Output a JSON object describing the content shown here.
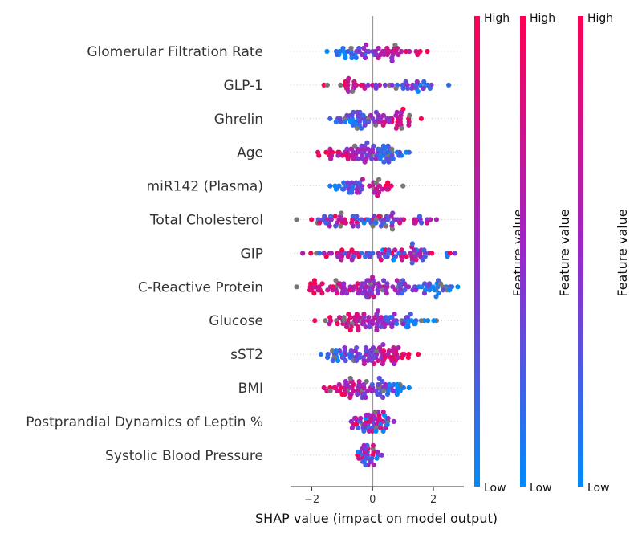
{
  "chart_data": {
    "type": "scatter",
    "subtype": "shap-beeswarm",
    "xlabel": "SHAP value (impact on model output)",
    "xlim": [
      -2.7,
      3.0
    ],
    "xticks": [
      {
        "value": -2,
        "label": "−2"
      },
      {
        "value": 0,
        "label": "0"
      },
      {
        "value": 2,
        "label": "2"
      }
    ],
    "features": [
      {
        "name": "Glomerular Filtration Rate",
        "range": [
          -1.5,
          1.8
        ],
        "n": 55,
        "seed": 11,
        "pattern": "left_low"
      },
      {
        "name": "GLP-1",
        "range": [
          -1.6,
          2.5
        ],
        "n": 50,
        "seed": 22,
        "pattern": "left_high"
      },
      {
        "name": "Ghrelin",
        "range": [
          -1.4,
          1.6
        ],
        "n": 70,
        "seed": 33,
        "pattern": "left_low"
      },
      {
        "name": "Age",
        "range": [
          -1.8,
          1.2
        ],
        "n": 80,
        "seed": 44,
        "pattern": "left_high"
      },
      {
        "name": "miR142 (Plasma)",
        "range": [
          -1.4,
          1.0
        ],
        "n": 45,
        "seed": 55,
        "pattern": "left_low"
      },
      {
        "name": "Total Cholesterol",
        "range": [
          -2.5,
          2.1
        ],
        "n": 75,
        "seed": 66,
        "pattern": "mixed"
      },
      {
        "name": "GIP",
        "range": [
          -2.3,
          2.7
        ],
        "n": 80,
        "seed": 77,
        "pattern": "mixed"
      },
      {
        "name": "C-Reactive Protein",
        "range": [
          -2.5,
          2.8
        ],
        "n": 120,
        "seed": 88,
        "pattern": "left_high"
      },
      {
        "name": "Glucose",
        "range": [
          -1.9,
          2.1
        ],
        "n": 90,
        "seed": 99,
        "pattern": "left_high"
      },
      {
        "name": "sST2",
        "range": [
          -1.7,
          1.5
        ],
        "n": 85,
        "seed": 110,
        "pattern": "left_low"
      },
      {
        "name": "BMI",
        "range": [
          -1.6,
          1.2
        ],
        "n": 80,
        "seed": 121,
        "pattern": "left_high"
      },
      {
        "name": "Postprandial Dynamics of Leptin %",
        "range": [
          -0.7,
          0.7
        ],
        "n": 60,
        "seed": 132,
        "pattern": "mixed"
      },
      {
        "name": "Systolic Blood Pressure",
        "range": [
          -0.5,
          0.3
        ],
        "n": 40,
        "seed": 143,
        "pattern": "mixed"
      }
    ],
    "colorbars": [
      {
        "title": "Feature value",
        "high": "High",
        "low": "Low"
      },
      {
        "title": "Feature value",
        "high": "High",
        "low": "Low"
      },
      {
        "title": "Feature value",
        "high": "High",
        "low": "Low"
      }
    ],
    "colors": {
      "low": "#008bfb",
      "high": "#ff0051",
      "missing": "#777777",
      "zero_line": "#999999",
      "guide": "#cccccc"
    },
    "grid": false
  }
}
